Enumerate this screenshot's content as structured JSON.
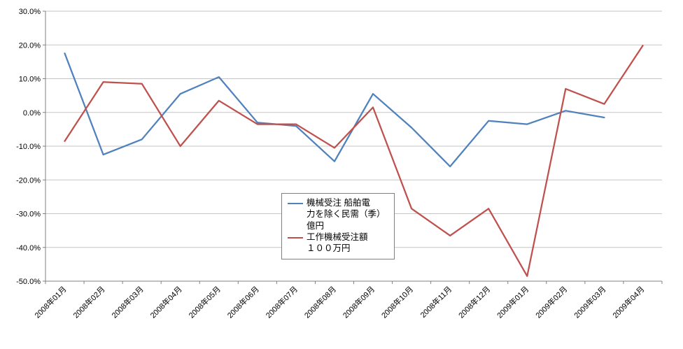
{
  "chart_data": {
    "type": "line",
    "title": "",
    "xlabel": "",
    "ylabel": "",
    "grid": true,
    "legend_position": "center",
    "ylim": [
      -50,
      30
    ],
    "ytick_step": 10,
    "ytick_labels": [
      "30.0%",
      "20.0%",
      "10.0%",
      "0.0%",
      "-10.0%",
      "-20.0%",
      "-30.0%",
      "-40.0%",
      "-50.0%"
    ],
    "categories": [
      "2008年01月",
      "2008年02月",
      "2008年03月",
      "2008年04月",
      "2008年05月",
      "2008年06月",
      "2008年07月",
      "2008年08月",
      "2008年09月",
      "2008年10月",
      "2008年11月",
      "2008年12月",
      "2009年01月",
      "2009年02月",
      "2009年03月",
      "2009年04月"
    ],
    "series": [
      {
        "name": "機械受注 船舶電\n力を除く民需（季）\n億円",
        "color": "#4F81BD",
        "values": [
          17.5,
          -12.5,
          -8.0,
          5.5,
          10.5,
          -3.0,
          -4.0,
          -14.5,
          5.5,
          -4.5,
          -16.0,
          -2.5,
          -3.5,
          0.5,
          -1.5,
          null
        ]
      },
      {
        "name": "工作機械受注額\n１００万円",
        "color": "#C0504D",
        "values": [
          -8.5,
          9.0,
          8.5,
          -10.0,
          3.5,
          -3.5,
          -3.5,
          -10.5,
          1.5,
          -28.5,
          -36.5,
          -28.5,
          -48.5,
          7.0,
          2.5,
          19.8
        ]
      }
    ]
  },
  "colors": {
    "background": "#ffffff",
    "gridline": "#c6c6c6",
    "axis": "#808080",
    "text": "#000000",
    "legend_border": "#7f7f7f"
  }
}
